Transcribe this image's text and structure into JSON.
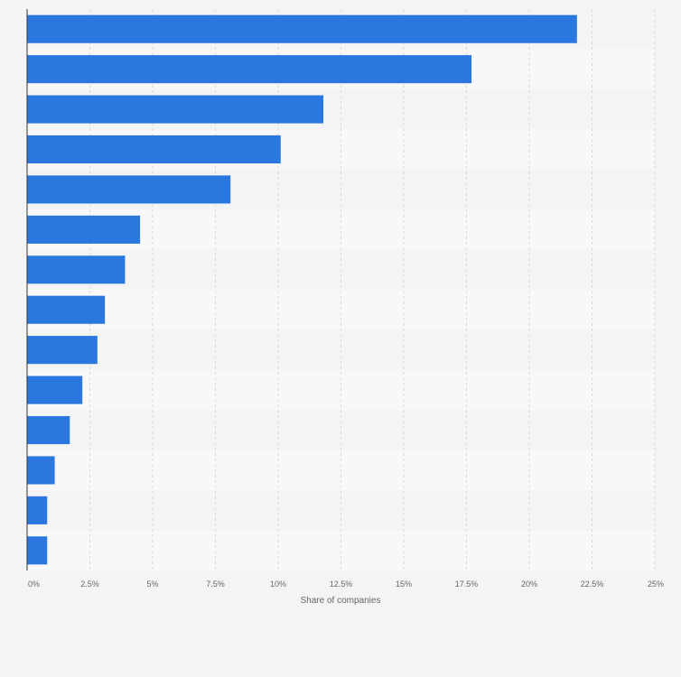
{
  "chart_data": {
    "type": "bar",
    "orientation": "horizontal",
    "values": [
      21.9,
      17.7,
      11.8,
      10.1,
      8.1,
      4.5,
      3.9,
      3.1,
      2.8,
      2.2,
      1.7,
      1.1,
      0.8,
      0.8
    ],
    "xlabel": "Share of companies",
    "xlim": [
      0,
      25
    ],
    "ticks": [
      0,
      2.5,
      5,
      7.5,
      10,
      12.5,
      15,
      17.5,
      20,
      22.5,
      25
    ],
    "tick_labels": [
      "0%",
      "2.5%",
      "5%",
      "7.5%",
      "10%",
      "12.5%",
      "15%",
      "17.5%",
      "20%",
      "22.5%",
      "25%"
    ],
    "grid": true,
    "legend": "none",
    "bar_color": "#2a78df",
    "band_colors": [
      "#f4f4f4",
      "#f8f8f8"
    ]
  }
}
